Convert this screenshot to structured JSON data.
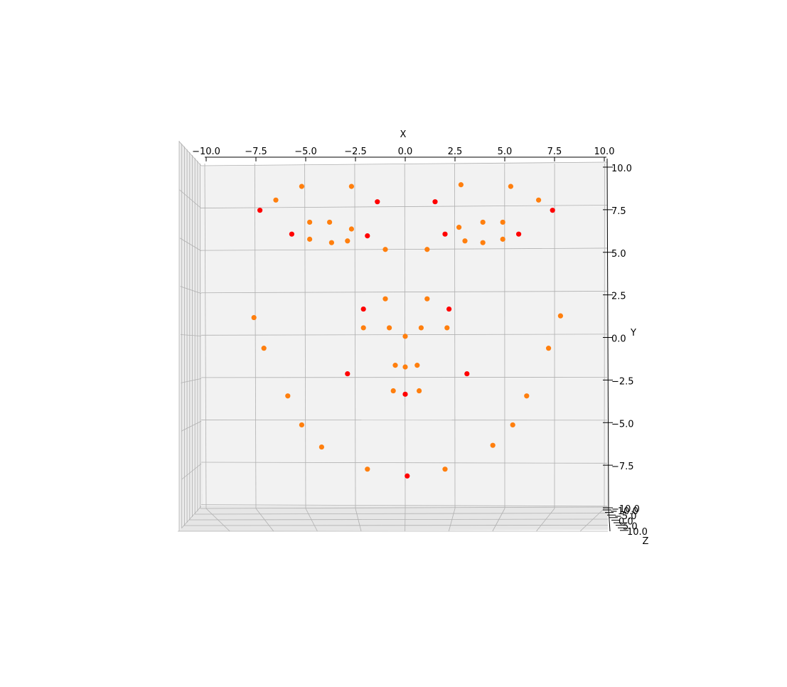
{
  "chart_data": {
    "type": "scatter",
    "projection": "3d",
    "title": "",
    "xlabel": "X",
    "ylabel": "Y",
    "zlabel": "Z",
    "xlim": [
      -10,
      10
    ],
    "ylim": [
      -10,
      10
    ],
    "zlim": [
      -10,
      10
    ],
    "grid": true,
    "x_ticks": [
      "−10.0",
      "−7.5",
      "−5.0",
      "−2.5",
      "0.0",
      "2.5",
      "5.0",
      "7.5",
      "10.0"
    ],
    "y_ticks": [
      "10.0",
      "7.5",
      "5.0",
      "2.5",
      "0.0",
      "−2.5",
      "−5.0",
      "−7.5",
      "−10.0"
    ],
    "z_ticks": [
      "−10.0",
      "−7.5",
      "−5.0",
      "−2.5",
      "0.0",
      "2.5",
      "5.0",
      "7.5",
      "10.0"
    ],
    "series": [
      {
        "color": "#ff7f0e",
        "points": [
          {
            "x": -5.2,
            "y": 8.7
          },
          {
            "x": -2.7,
            "y": 8.7
          },
          {
            "x": 2.8,
            "y": 8.8
          },
          {
            "x": 5.3,
            "y": 8.7
          },
          {
            "x": -6.5,
            "y": 7.9
          },
          {
            "x": 6.7,
            "y": 7.9
          },
          {
            "x": -4.8,
            "y": 6.6
          },
          {
            "x": -3.8,
            "y": 6.6
          },
          {
            "x": 3.9,
            "y": 6.6
          },
          {
            "x": 4.9,
            "y": 6.6
          },
          {
            "x": -2.7,
            "y": 6.2
          },
          {
            "x": 2.7,
            "y": 6.3
          },
          {
            "x": -4.8,
            "y": 5.6
          },
          {
            "x": -3.7,
            "y": 5.4
          },
          {
            "x": -2.9,
            "y": 5.5
          },
          {
            "x": 3.0,
            "y": 5.5
          },
          {
            "x": 3.9,
            "y": 5.4
          },
          {
            "x": 4.9,
            "y": 5.6
          },
          {
            "x": -1.0,
            "y": 5.0
          },
          {
            "x": 1.1,
            "y": 5.0
          },
          {
            "x": -1.0,
            "y": 2.1
          },
          {
            "x": 1.1,
            "y": 2.1
          },
          {
            "x": -7.6,
            "y": 1.0
          },
          {
            "x": 7.8,
            "y": 1.1
          },
          {
            "x": -2.1,
            "y": 0.4
          },
          {
            "x": -0.8,
            "y": 0.4
          },
          {
            "x": 0.8,
            "y": 0.4
          },
          {
            "x": 2.1,
            "y": 0.4
          },
          {
            "x": 0.0,
            "y": -0.1
          },
          {
            "x": -7.1,
            "y": -0.8
          },
          {
            "x": 7.2,
            "y": -0.8
          },
          {
            "x": -0.5,
            "y": -1.8
          },
          {
            "x": 0.0,
            "y": -1.9
          },
          {
            "x": 0.6,
            "y": -1.8
          },
          {
            "x": -0.6,
            "y": -3.3
          },
          {
            "x": 0.7,
            "y": -3.3
          },
          {
            "x": -5.9,
            "y": -3.6
          },
          {
            "x": 6.1,
            "y": -3.6
          },
          {
            "x": -5.2,
            "y": -5.3
          },
          {
            "x": 5.4,
            "y": -5.3
          },
          {
            "x": -4.2,
            "y": -6.6
          },
          {
            "x": 4.4,
            "y": -6.5
          },
          {
            "x": -1.9,
            "y": -7.9
          },
          {
            "x": 2.0,
            "y": -7.9
          }
        ]
      },
      {
        "color": "#ff0000",
        "points": [
          {
            "x": -7.3,
            "y": 7.3
          },
          {
            "x": -1.4,
            "y": 7.8
          },
          {
            "x": 1.5,
            "y": 7.8
          },
          {
            "x": 7.4,
            "y": 7.3
          },
          {
            "x": -5.7,
            "y": 5.9
          },
          {
            "x": -1.9,
            "y": 5.8
          },
          {
            "x": 2.0,
            "y": 5.9
          },
          {
            "x": 5.7,
            "y": 5.9
          },
          {
            "x": -2.1,
            "y": 1.5
          },
          {
            "x": 2.2,
            "y": 1.5
          },
          {
            "x": -2.9,
            "y": -2.3
          },
          {
            "x": 3.1,
            "y": -2.3
          },
          {
            "x": 0.0,
            "y": -3.5
          },
          {
            "x": 0.1,
            "y": -8.3
          }
        ]
      }
    ]
  }
}
